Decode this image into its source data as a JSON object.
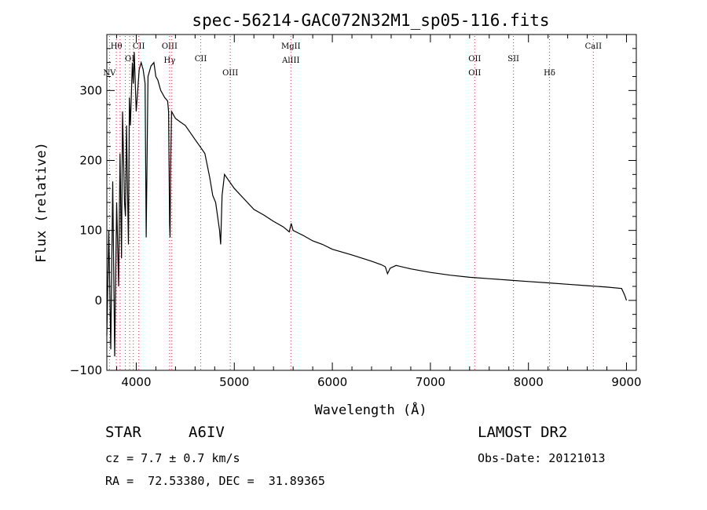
{
  "chart_data": {
    "type": "line",
    "title": "spec-56214-GAC072N32M1_sp05-116.fits",
    "xlabel": "Wavelength (Å)",
    "ylabel": "Flux (relative)",
    "xlim": [
      3700,
      9100
    ],
    "ylim": [
      -100,
      380
    ],
    "xticks": [
      4000,
      5000,
      6000,
      7000,
      8000,
      9000
    ],
    "yticks": [
      -100,
      0,
      100,
      200,
      300
    ],
    "series": [
      {
        "x": [
          3700,
          3720,
          3740,
          3760,
          3780,
          3800,
          3820,
          3835,
          3850,
          3860,
          3880,
          3890,
          3900,
          3920,
          3930,
          3940,
          3960,
          3970,
          3980,
          4000,
          4030,
          4050,
          4070,
          4090,
          4101,
          4120,
          4150,
          4180,
          4200,
          4220,
          4250,
          4290,
          4320,
          4330,
          4340,
          4345,
          4350,
          4360,
          4400,
          4450,
          4500,
          4550,
          4600,
          4650,
          4700,
          4750,
          4780,
          4810,
          4830,
          4850,
          4861,
          4875,
          4900,
          4950,
          5000,
          5100,
          5200,
          5300,
          5400,
          5500,
          5560,
          5580,
          5600,
          5700,
          5800,
          5900,
          6000,
          6200,
          6400,
          6500,
          6540,
          6563,
          6590,
          6650,
          6800,
          7000,
          7200,
          7400,
          7600,
          7800,
          8000,
          8200,
          8400,
          8600,
          8800,
          8950,
          8980,
          9000
        ],
        "y": [
          -50,
          100,
          -70,
          170,
          -80,
          140,
          20,
          210,
          60,
          270,
          140,
          120,
          250,
          80,
          290,
          250,
          340,
          310,
          355,
          270,
          330,
          340,
          330,
          310,
          90,
          320,
          335,
          340,
          320,
          315,
          300,
          290,
          285,
          270,
          110,
          90,
          180,
          270,
          260,
          255,
          250,
          240,
          230,
          220,
          210,
          175,
          150,
          140,
          120,
          100,
          80,
          150,
          180,
          170,
          160,
          145,
          130,
          122,
          113,
          105,
          98,
          110,
          100,
          93,
          85,
          80,
          73,
          65,
          56,
          51,
          48,
          38,
          46,
          50,
          45,
          40,
          36,
          33,
          31,
          29,
          27,
          25,
          23,
          21,
          19,
          17,
          8,
          0
        ]
      }
    ],
    "lines": [
      {
        "wavelength": 3727,
        "labels": [
          "NV"
        ],
        "row": 3
      },
      {
        "wavelength": 3797,
        "labels": [
          "Hθ"
        ],
        "row": 1
      },
      {
        "wavelength": 3835,
        "labels": [],
        "row": 1
      },
      {
        "wavelength": 3889,
        "labels": [],
        "row": 1
      },
      {
        "wavelength": 3933,
        "labels": [
          "OI"
        ],
        "row": 2
      },
      {
        "wavelength": 3970,
        "labels": [],
        "row": 1
      },
      {
        "wavelength": 4026,
        "labels": [
          "CII"
        ],
        "row": 1
      },
      {
        "wavelength": 4340,
        "labels": [
          "OIII",
          "Hγ"
        ],
        "row": 1
      },
      {
        "wavelength": 4363,
        "labels": [],
        "row": 1
      },
      {
        "wavelength": 4658,
        "labels": [
          "CII"
        ],
        "row": 2
      },
      {
        "wavelength": 4959,
        "labels": [
          "OIII"
        ],
        "row": 3
      },
      {
        "wavelength": 5577,
        "labels": [
          "MgII",
          "AlIII"
        ],
        "row": 1
      },
      {
        "wavelength": 7452,
        "labels": [
          "OII",
          "OII"
        ],
        "row": 2
      },
      {
        "wavelength": 7847,
        "labels": [
          "SII"
        ],
        "row": 2
      },
      {
        "wavelength": 8215,
        "labels": [
          "Hδ"
        ],
        "row": 3
      },
      {
        "wavelength": 8662,
        "labels": [
          "CaII"
        ],
        "row": 1
      }
    ]
  },
  "info": {
    "object_class": "STAR",
    "subclass": "A6IV",
    "redshift": "cz = 7.7 ± 0.7 km/s",
    "coords": "RA =  72.53380, DEC =  31.89365",
    "survey": "LAMOST DR2",
    "obs_date": "Obs-Date: 20121013"
  },
  "colors": {
    "spectrum": "#000000",
    "line_marker": "#d03030",
    "axis": "#000000"
  }
}
